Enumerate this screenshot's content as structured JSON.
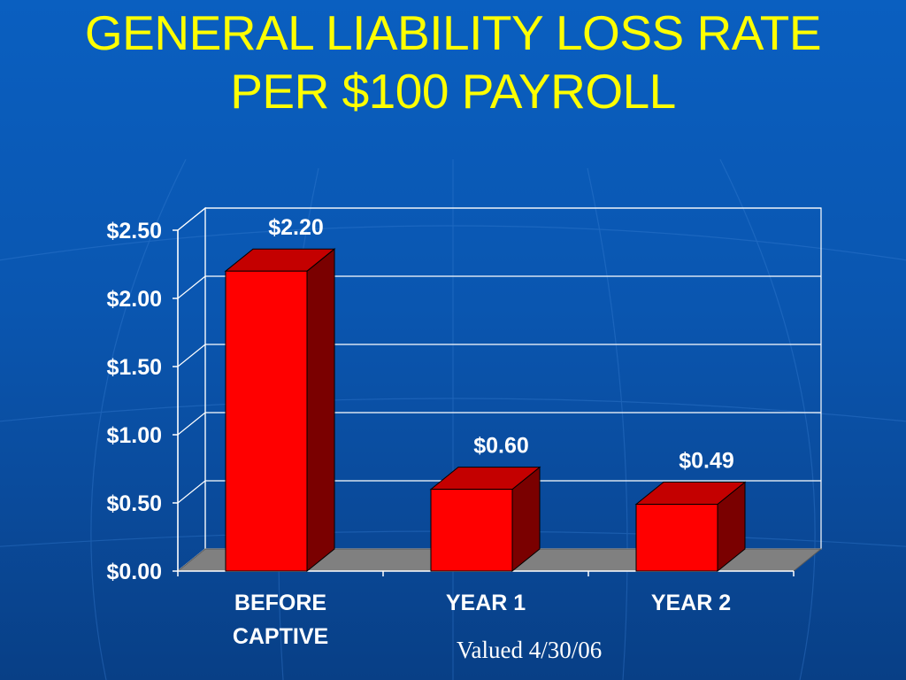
{
  "slide": {
    "title_line1": "GENERAL LIABILITY LOSS RATE",
    "title_line2": "PER $100 PAYROLL",
    "footnote": "Valued 4/30/06"
  },
  "colors": {
    "background": "#0a56b0",
    "title": "#ffff00",
    "bar_front": "#ff0000",
    "bar_side": "#7a0000",
    "bar_top": "#c40000",
    "floor": "#808080",
    "text": "#ffffff"
  },
  "chart_data": {
    "type": "bar",
    "style": "3d",
    "categories": [
      [
        "BEFORE",
        "CAPTIVE"
      ],
      [
        "YEAR 1"
      ],
      [
        "YEAR 2"
      ]
    ],
    "values": [
      2.2,
      0.6,
      0.49
    ],
    "data_labels": [
      "$2.20",
      "$0.60",
      "$0.49"
    ],
    "y_ticks": [
      0,
      0.5,
      1.0,
      1.5,
      2.0,
      2.5
    ],
    "y_tick_labels": [
      "$0.00",
      "$0.50",
      "$1.00",
      "$1.50",
      "$2.00",
      "$2.50"
    ],
    "ylim": [
      0,
      2.5
    ],
    "grid": true,
    "legend": false
  }
}
